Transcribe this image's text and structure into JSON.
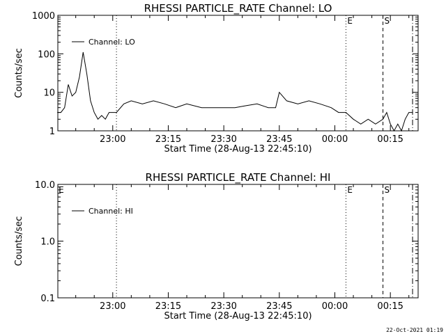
{
  "footer": {
    "timestamp": "22-Oct-2021 01:19"
  },
  "chart_data": [
    {
      "type": "line",
      "title": "RHESSI PARTICLE_RATE Channel: LO",
      "xlabel": "Start Time (28-Aug-13 22:45:10)",
      "ylabel": "Counts/sec",
      "yscale": "log",
      "ylim": [
        1,
        1000
      ],
      "xlim": [
        "22:45:10",
        "00:22:30"
      ],
      "x_ticks": [
        "23:00",
        "23:15",
        "23:30",
        "23:45",
        "00:00",
        "00:15"
      ],
      "y_ticks": [
        "1",
        "10",
        "100",
        "1000"
      ],
      "legend": {
        "position": "top-left",
        "entries": [
          "Channel: LO"
        ]
      },
      "markers": [
        {
          "label": "",
          "time": "23:01",
          "style": "dotted"
        },
        {
          "label": "E",
          "time": "00:03",
          "style": "dotted"
        },
        {
          "label": "S",
          "time": "00:13",
          "style": "dashed"
        },
        {
          "label": "",
          "time": "00:21",
          "style": "dashdot"
        }
      ],
      "series": [
        {
          "name": "Channel: LO",
          "x": [
            "22:45",
            "22:46",
            "22:47",
            "22:48",
            "22:49",
            "22:50",
            "22:51",
            "22:52",
            "22:53",
            "22:54",
            "22:55",
            "22:56",
            "22:57",
            "22:58",
            "22:59",
            "23:00",
            "23:01",
            "23:03",
            "23:05",
            "23:08",
            "23:11",
            "23:14",
            "23:17",
            "23:20",
            "23:24",
            "23:27",
            "23:30",
            "23:33",
            "23:36",
            "23:39",
            "23:42",
            "23:44",
            "23:45",
            "23:47",
            "23:50",
            "23:53",
            "23:56",
            "23:59",
            "00:01",
            "00:03",
            "00:05",
            "00:07",
            "00:09",
            "00:11",
            "00:13",
            "00:14",
            "00:15",
            "00:16",
            "00:17",
            "00:18",
            "00:19",
            "00:20",
            "00:21"
          ],
          "values": [
            3,
            3,
            4,
            16,
            8,
            10,
            25,
            110,
            30,
            6,
            3,
            2,
            2.5,
            2,
            3,
            3,
            3,
            5,
            6,
            5,
            6,
            5,
            4,
            5,
            4,
            4,
            4,
            4,
            4.5,
            5,
            4,
            4,
            10,
            6,
            5,
            6,
            5,
            4,
            3,
            3,
            2,
            1.5,
            2,
            1.5,
            2,
            3,
            1.5,
            1,
            1.5,
            1,
            2,
            3,
            3
          ]
        }
      ]
    },
    {
      "type": "line",
      "title": "RHESSI PARTICLE_RATE Channel: HI",
      "xlabel": "Start Time (28-Aug-13 22:45:10)",
      "ylabel": "Counts/sec",
      "yscale": "log",
      "ylim": [
        0.1,
        10
      ],
      "xlim": [
        "22:45:10",
        "00:22:30"
      ],
      "x_ticks": [
        "23:00",
        "23:15",
        "23:30",
        "23:45",
        "00:00",
        "00:15"
      ],
      "y_ticks": [
        "0.1",
        "1.0",
        "10.0"
      ],
      "legend": {
        "position": "top-left",
        "entries": [
          "Channel: HI"
        ]
      },
      "markers": [
        {
          "label": "E",
          "time": "22:45",
          "style": "none"
        },
        {
          "label": "",
          "time": "23:01",
          "style": "dotted"
        },
        {
          "label": "E",
          "time": "00:03",
          "style": "dotted"
        },
        {
          "label": "S",
          "time": "00:13",
          "style": "dashed"
        },
        {
          "label": "",
          "time": "00:21",
          "style": "dashdot"
        }
      ],
      "series": []
    }
  ]
}
